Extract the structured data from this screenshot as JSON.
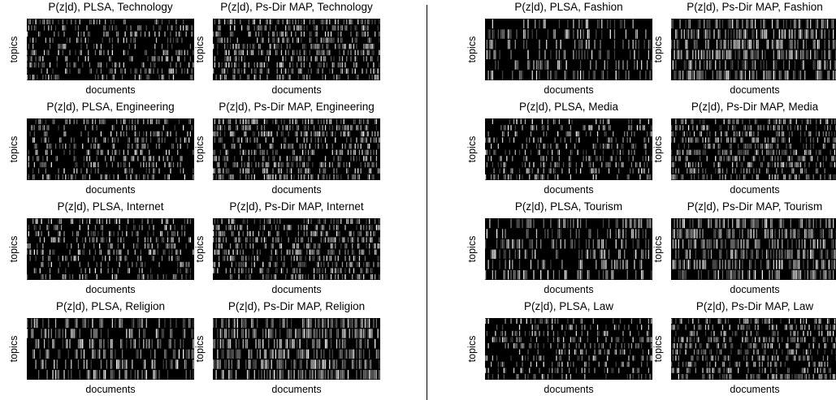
{
  "figure": {
    "ylabel": "topics",
    "xlabel": "documents"
  },
  "chart_data": [
    {
      "type": "heatmap",
      "title": "P(z|d), PLSA, Technology",
      "category": "Technology",
      "method": "PLSA",
      "xlabel": "documents",
      "ylabel": "topics",
      "rows": 10,
      "density": 0.28,
      "seed": 11
    },
    {
      "type": "heatmap",
      "title": "P(z|d), Ps-Dir MAP, Technology",
      "category": "Technology",
      "method": "Ps-Dir MAP",
      "xlabel": "documents",
      "ylabel": "topics",
      "rows": 10,
      "density": 0.42,
      "seed": 12
    },
    {
      "type": "heatmap",
      "title": "P(z|d), PLSA, Engineering",
      "category": "Engineering",
      "method": "PLSA",
      "xlabel": "documents",
      "ylabel": "topics",
      "rows": 10,
      "density": 0.28,
      "seed": 21
    },
    {
      "type": "heatmap",
      "title": "P(z|d), Ps-Dir MAP, Engineering",
      "category": "Engineering",
      "method": "Ps-Dir MAP",
      "xlabel": "documents",
      "ylabel": "topics",
      "rows": 10,
      "density": 0.42,
      "seed": 22
    },
    {
      "type": "heatmap",
      "title": "P(z|d), PLSA, Internet",
      "category": "Internet",
      "method": "PLSA",
      "xlabel": "documents",
      "ylabel": "topics",
      "rows": 10,
      "density": 0.28,
      "seed": 31
    },
    {
      "type": "heatmap",
      "title": "P(z|d), Ps-Dir MAP, Internet",
      "category": "Internet",
      "method": "Ps-Dir MAP",
      "xlabel": "documents",
      "ylabel": "topics",
      "rows": 10,
      "density": 0.42,
      "seed": 32
    },
    {
      "type": "heatmap",
      "title": "P(z|d), PLSA, Religion",
      "category": "Religion",
      "method": "PLSA",
      "xlabel": "documents",
      "ylabel": "topics",
      "rows": 6,
      "density": 0.32,
      "seed": 41
    },
    {
      "type": "heatmap",
      "title": "P(z|d), Ps-Dir MAP, Religion",
      "category": "Religion",
      "method": "Ps-Dir MAP",
      "xlabel": "documents",
      "ylabel": "topics",
      "rows": 6,
      "density": 0.5,
      "seed": 42
    },
    {
      "type": "heatmap",
      "title": "P(z|d), PLSA, Fashion",
      "category": "Fashion",
      "method": "PLSA",
      "xlabel": "documents",
      "ylabel": "topics",
      "rows": 6,
      "density": 0.32,
      "seed": 51
    },
    {
      "type": "heatmap",
      "title": "P(z|d), Ps-Dir MAP, Fashion",
      "category": "Fashion",
      "method": "Ps-Dir MAP",
      "xlabel": "documents",
      "ylabel": "topics",
      "rows": 6,
      "density": 0.5,
      "seed": 52
    },
    {
      "type": "heatmap",
      "title": "P(z|d), PLSA, Media",
      "category": "Media",
      "method": "PLSA",
      "xlabel": "documents",
      "ylabel": "topics",
      "rows": 10,
      "density": 0.28,
      "seed": 61
    },
    {
      "type": "heatmap",
      "title": "P(z|d), Ps-Dir MAP, Media",
      "category": "Media",
      "method": "Ps-Dir MAP",
      "xlabel": "documents",
      "ylabel": "topics",
      "rows": 10,
      "density": 0.42,
      "seed": 62
    },
    {
      "type": "heatmap",
      "title": "P(z|d), PLSA, Tourism",
      "category": "Tourism",
      "method": "PLSA",
      "xlabel": "documents",
      "ylabel": "topics",
      "rows": 6,
      "density": 0.32,
      "seed": 71
    },
    {
      "type": "heatmap",
      "title": "P(z|d), Ps-Dir MAP, Tourism",
      "category": "Tourism",
      "method": "Ps-Dir MAP",
      "xlabel": "documents",
      "ylabel": "topics",
      "rows": 6,
      "density": 0.5,
      "seed": 72
    },
    {
      "type": "heatmap",
      "title": "P(z|d), PLSA, Law",
      "category": "Law",
      "method": "PLSA",
      "xlabel": "documents",
      "ylabel": "topics",
      "rows": 10,
      "density": 0.28,
      "seed": 81
    },
    {
      "type": "heatmap",
      "title": "P(z|d), Ps-Dir MAP, Law",
      "category": "Law",
      "method": "Ps-Dir MAP",
      "xlabel": "documents",
      "ylabel": "topics",
      "rows": 10,
      "density": 0.42,
      "seed": 82
    }
  ]
}
